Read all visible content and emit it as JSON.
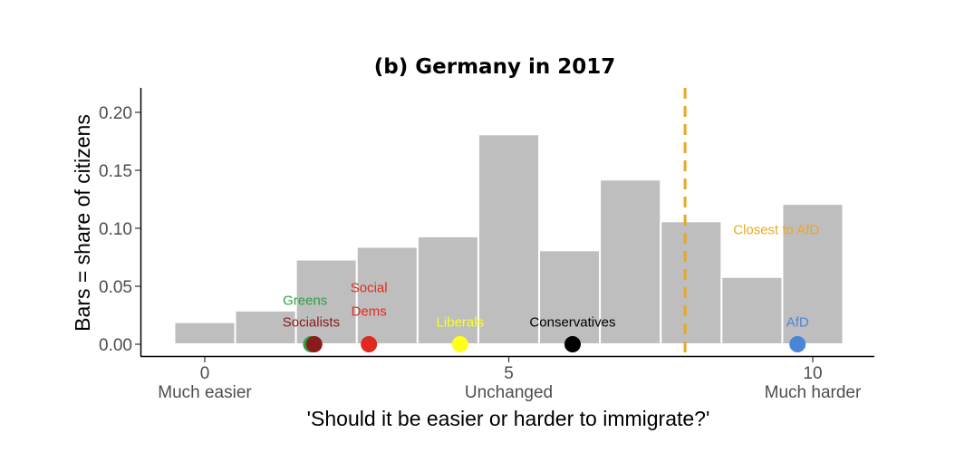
{
  "chart_data": {
    "type": "bar",
    "title": "(b) Germany in 2017",
    "xlabel": "'Should it be easier or harder to immigrate?'",
    "ylabel": "Bars = share of citizens",
    "xlim": [
      -1,
      11
    ],
    "ylim": [
      0,
      0.22
    ],
    "grid": false,
    "x": [
      0,
      1,
      2,
      3,
      4,
      5,
      6,
      7,
      8,
      9,
      10
    ],
    "values": [
      0.019,
      0.029,
      0.073,
      0.084,
      0.093,
      0.181,
      0.081,
      0.142,
      0.106,
      0.058,
      0.121
    ],
    "bar_color": "#bebebe",
    "x_ticks": [
      {
        "value": 0,
        "label": "0",
        "sublabel": "Much easier"
      },
      {
        "value": 5,
        "label": "5",
        "sublabel": "Unchanged"
      },
      {
        "value": 10,
        "label": "10",
        "sublabel": "Much harder"
      }
    ],
    "y_ticks": [
      {
        "value": 0.0,
        "label": "0.00"
      },
      {
        "value": 0.05,
        "label": "0.05"
      },
      {
        "value": 0.1,
        "label": "0.10"
      },
      {
        "value": 0.15,
        "label": "0.15"
      },
      {
        "value": 0.2,
        "label": "0.20"
      }
    ],
    "reference_line": {
      "x": 7.9,
      "label": "Closest to AfD",
      "label_x": 9.4,
      "label_y": 0.099,
      "color": "#e8a822"
    },
    "parties": [
      {
        "name": "Greens",
        "x": 1.75,
        "color": "#2ea043",
        "label_lines": [
          "Greens"
        ],
        "label_x": 1.65,
        "label_y": 0.038
      },
      {
        "name": "Socialists",
        "x": 1.8,
        "color": "#8b1a1a",
        "label_lines": [
          "Socialists"
        ],
        "label_x": 1.75,
        "label_y": 0.019
      },
      {
        "name": "Social Dems",
        "x": 2.7,
        "color": "#e0291f",
        "label_lines": [
          "Social",
          "Dems"
        ],
        "label_x": 2.7,
        "label_y": 0.049
      },
      {
        "name": "Liberals",
        "x": 4.2,
        "color": "#ffff1a",
        "label_lines": [
          "Liberals"
        ],
        "label_x": 4.2,
        "label_y": 0.019
      },
      {
        "name": "Conservatives",
        "x": 6.05,
        "color": "#000000",
        "label_lines": [
          "Conservatives"
        ],
        "label_x": 6.05,
        "label_y": 0.019
      },
      {
        "name": "AfD",
        "x": 9.75,
        "color": "#4a86d8",
        "label_lines": [
          "AfD"
        ],
        "label_x": 9.75,
        "label_y": 0.019
      }
    ]
  }
}
